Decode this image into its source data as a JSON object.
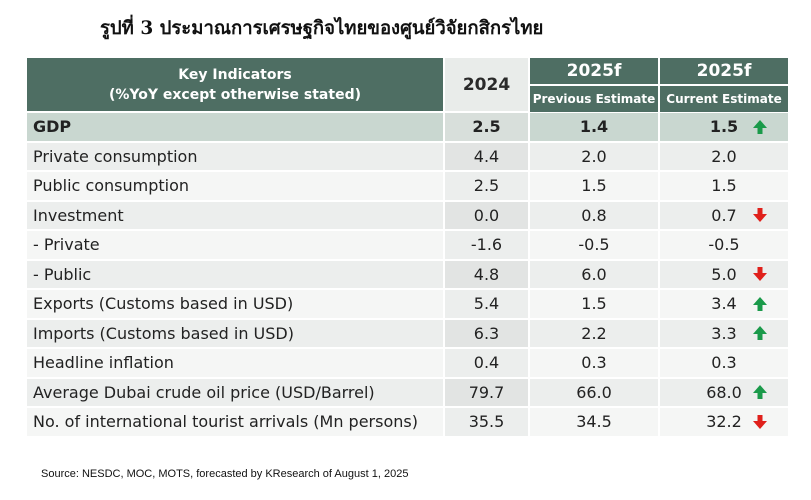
{
  "title": "รูปที่ 3 ประมาณการเศรษฐกิจไทยของศูนย์วิจัยกสิกรไทย",
  "header": {
    "key_line1": "Key Indicators",
    "key_line2": "(%YoY except otherwise stated)",
    "col_2024": "2024",
    "col_prev_year": "2025f",
    "col_prev_label": "Previous Estimate",
    "col_curr_year": "2025f",
    "col_curr_label": "Current Estimate"
  },
  "rows": [
    {
      "label": "GDP",
      "v2024": "2.5",
      "prev": "1.4",
      "curr": "1.5",
      "change": "up"
    },
    {
      "label": "Private consumption",
      "v2024": "4.4",
      "prev": "2.0",
      "curr": "2.0",
      "change": "none"
    },
    {
      "label": "Public consumption",
      "v2024": "2.5",
      "prev": "1.5",
      "curr": "1.5",
      "change": "none"
    },
    {
      "label": "Investment",
      "v2024": "0.0",
      "prev": "0.8",
      "curr": "0.7",
      "change": "down"
    },
    {
      "label": " - Private",
      "v2024": "-1.6",
      "prev": "-0.5",
      "curr": "-0.5",
      "change": "none"
    },
    {
      "label": " - Public",
      "v2024": "4.8",
      "prev": "6.0",
      "curr": "5.0",
      "change": "down"
    },
    {
      "label": "Exports (Customs based in USD)",
      "v2024": "5.4",
      "prev": "1.5",
      "curr": "3.4",
      "change": "up"
    },
    {
      "label": "Imports (Customs based in USD)",
      "v2024": "6.3",
      "prev": "2.2",
      "curr": "3.3",
      "change": "up"
    },
    {
      "label": "Headline inflation",
      "v2024": "0.4",
      "prev": "0.3",
      "curr": "0.3",
      "change": "none"
    },
    {
      "label": "Average Dubai crude oil price (USD/Barrel)",
      "v2024": "79.7",
      "prev": "66.0",
      "curr": "68.0",
      "change": "up"
    },
    {
      "label": "No. of international tourist arrivals (Mn persons)",
      "v2024": "35.5",
      "prev": "34.5",
      "curr": "32.2",
      "change": "down"
    }
  ],
  "colors": {
    "up": "#1a9a4a",
    "down": "#e0201b",
    "header": "#4e6e63"
  },
  "source": "Source: NESDC, MOC, MOTS, forecasted by KResearch of August 1, 2025"
}
